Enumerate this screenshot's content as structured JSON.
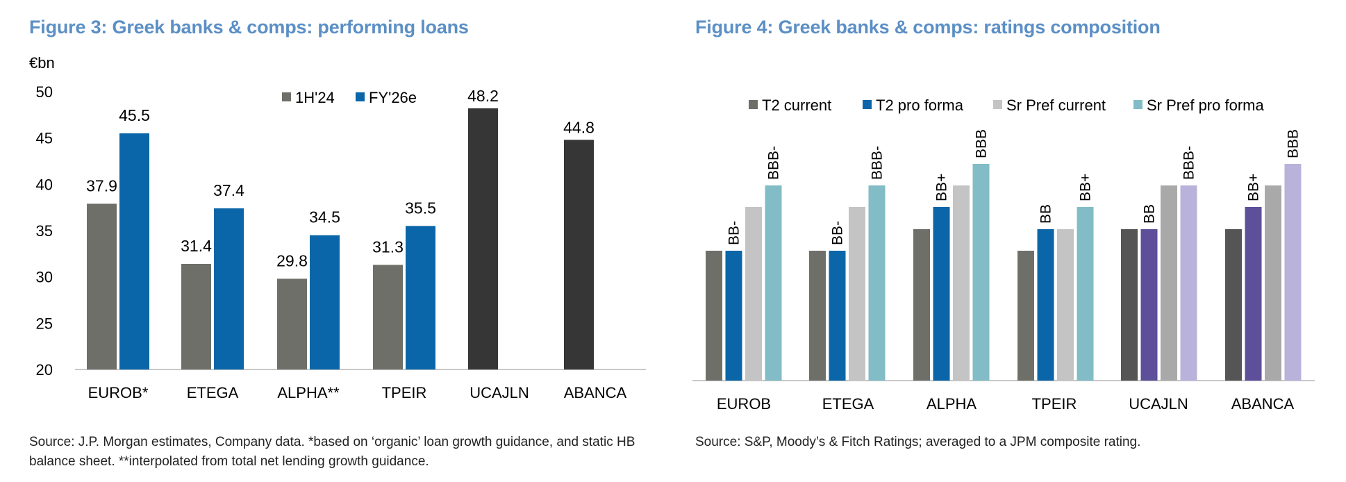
{
  "figure3": {
    "title": "Figure 3: Greek banks & comps: performing loans",
    "source": "Source: J.P. Morgan estimates, Company data. *based on ‘organic’ loan growth guidance, and static HB balance sheet. **interpolated from total net lending growth guidance."
  },
  "figure4": {
    "title": "Figure 4: Greek banks & comps: ratings composition",
    "source": "Source: S&P, Moody’s & Fitch Ratings; averaged to a JPM composite rating."
  },
  "chart_data": [
    {
      "type": "bar",
      "title": "Figure 3: Greek banks & comps: performing loans",
      "ylabel": "€bn",
      "ylim": [
        20,
        50
      ],
      "yticks": [
        20,
        25,
        30,
        35,
        40,
        45,
        50
      ],
      "categories": [
        "EUROB*",
        "ETEGA",
        "ALPHA**",
        "TPEIR",
        "UCAJLN",
        "ABANCA"
      ],
      "series": [
        {
          "name": "1H'24",
          "values": [
            37.9,
            31.4,
            29.8,
            31.3,
            null,
            null
          ]
        },
        {
          "name": "FY'26e",
          "values": [
            45.5,
            37.4,
            34.5,
            35.5,
            null,
            null
          ]
        }
      ],
      "comparables": {
        "categories": [
          "UCAJLN",
          "ABANCA"
        ],
        "values": [
          48.2,
          44.8
        ]
      },
      "legend": "top-center",
      "colors": {
        "1H'24": "#6f6f6a",
        "FY'26e": "#0a66a8",
        "comps": "#363636"
      }
    },
    {
      "type": "bar",
      "title": "Figure 4: Greek banks & comps: ratings composition",
      "categories": [
        "EUROB",
        "ETEGA",
        "ALPHA",
        "TPEIR",
        "UCAJLN",
        "ABANCA"
      ],
      "rating_scale": [
        "BB-",
        "BB",
        "BB+",
        "BBB-",
        "BBB"
      ],
      "series": [
        {
          "name": "T2 current",
          "values": [
            "BB-",
            "BB-",
            "BB",
            "BB-",
            "BB",
            "BB"
          ]
        },
        {
          "name": "T2 pro forma",
          "values": [
            "BB-",
            "BB-",
            "BB+",
            "BB",
            "BB",
            "BB+"
          ]
        },
        {
          "name": "Sr Pref current",
          "values": [
            "BB+",
            "BB+",
            "BBB-",
            "BB",
            "BBB-",
            "BBB-"
          ]
        },
        {
          "name": "Sr Pref pro forma",
          "values": [
            "BBB-",
            "BBB-",
            "BBB",
            "BB+",
            "BBB-",
            "BBB"
          ]
        }
      ],
      "labeled": [
        {
          "category": "EUROB",
          "labels": [
            "BB-",
            "BBB-"
          ]
        },
        {
          "category": "ETEGA",
          "labels": [
            "BB-",
            "BBB-"
          ]
        },
        {
          "category": "ALPHA",
          "labels": [
            "BB+",
            "BBB"
          ]
        },
        {
          "category": "TPEIR",
          "labels": [
            "BB",
            "BB+"
          ]
        },
        {
          "category": "UCAJLN",
          "labels": [
            "BB",
            "BBB-"
          ]
        },
        {
          "category": "ABANCA",
          "labels": [
            "BB+",
            "BBB"
          ]
        }
      ],
      "legend": "top",
      "colors": {
        "T2 current": "#6f6f6a",
        "T2 pro forma": "#0a66a8",
        "Sr Pref current": "#c4c4c4",
        "Sr Pref pro forma": "#82bcc6",
        "comps_t2_current": "#555555",
        "comps_t2_pro_forma": "#5d4f9a",
        "comps_sr_pref_current": "#a9a9a9",
        "comps_sr_pref_pro_forma": "#b9b2db"
      }
    }
  ]
}
